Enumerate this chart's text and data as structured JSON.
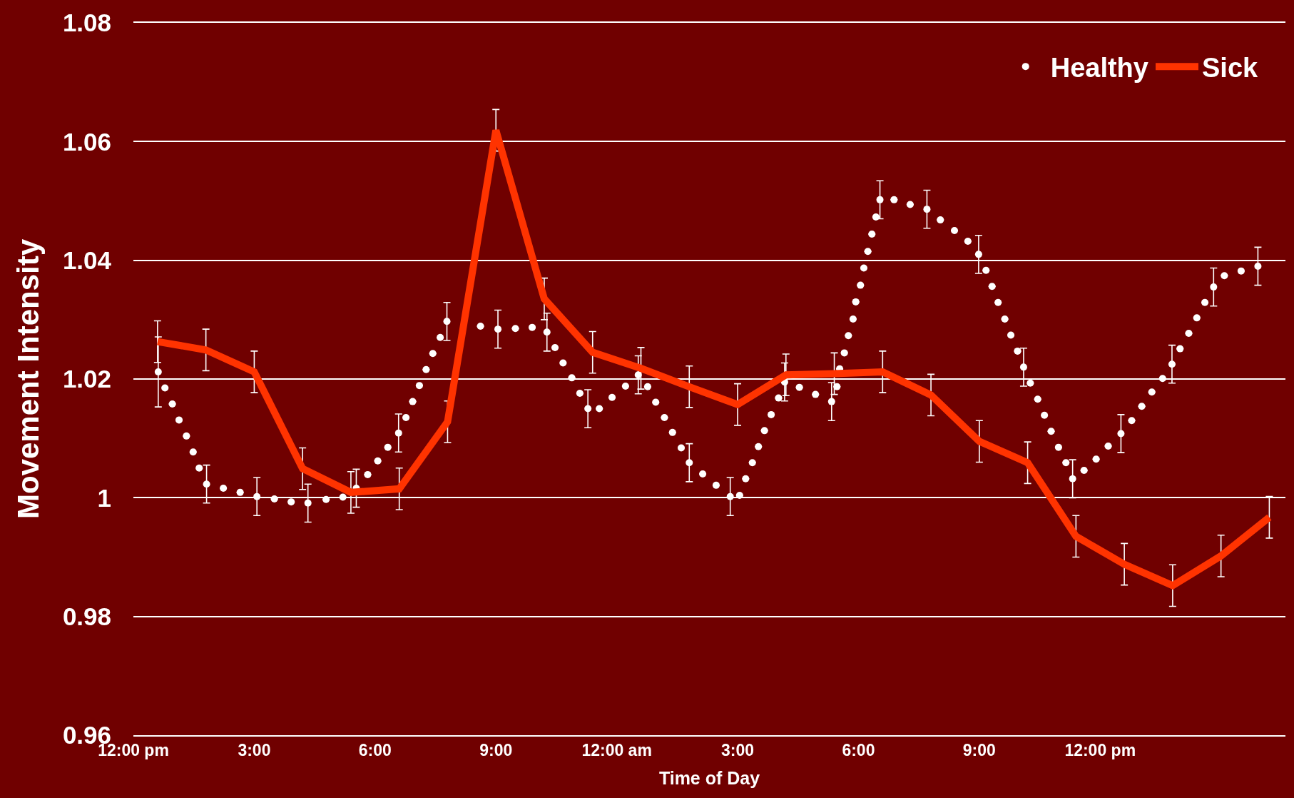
{
  "chart_data": {
    "type": "line",
    "xlabel": "Time of Day",
    "ylabel": "Movement Intensity",
    "xlim": [
      "--01-01T12:00",
      "--01-02T16:36"
    ],
    "xticks": [
      {
        "value": "--01-01T12:00",
        "label": "12:00 pm"
      },
      {
        "value": "--01-01T15:00",
        "label": "3:00"
      },
      {
        "value": "--01-01T18:00",
        "label": "6:00"
      },
      {
        "value": "--01-01T21:00",
        "label": "9:00"
      },
      {
        "value": "--01-02T00:00",
        "label": "12:00 am"
      },
      {
        "value": "--01-02T03:00",
        "label": "3:00"
      },
      {
        "value": "--01-02T06:00",
        "label": "6:00"
      },
      {
        "value": "--01-02T09:00",
        "label": "9:00"
      },
      {
        "value": "--01-02T12:00",
        "label": "12:00 pm"
      }
    ],
    "ylim": [
      0.96,
      1.08
    ],
    "yticks": [
      0.96,
      0.98,
      1,
      1.02,
      1.04,
      1.06,
      1.08
    ],
    "grid": "y",
    "legend": "top right",
    "series": [
      {
        "name": "Healthy",
        "type": "scatter",
        "marker": "circle",
        "color": "#ffffff",
        "x": [
          "--01-01T12:37",
          "--01-01T12:47",
          "--01-01T12:58",
          "--01-01T13:08",
          "--01-01T13:19",
          "--01-01T13:29",
          "--01-01T13:38",
          "--01-01T13:49",
          "--01-01T14:14",
          "--01-01T14:39",
          "--01-01T15:04",
          "--01-01T15:30",
          "--01-01T15:55",
          "--01-01T16:20",
          "--01-01T16:47",
          "--01-01T17:12",
          "--01-01T17:32",
          "--01-01T17:49",
          "--01-01T18:04",
          "--01-01T18:19",
          "--01-01T18:35",
          "--01-01T18:46",
          "--01-01T18:56",
          "--01-01T19:06",
          "--01-01T19:16",
          "--01-01T19:26",
          "--01-01T19:37",
          "--01-01T19:47",
          "--01-01T20:37",
          "--01-01T21:03",
          "--01-01T21:29",
          "--01-01T21:54",
          "--01-01T22:16",
          "--01-01T22:28",
          "--01-01T22:40",
          "--01-01T22:53",
          "--01-01T23:05",
          "--01-01T23:17",
          "--01-01T23:34",
          "--01-01T23:53",
          "--01-02T00:13",
          "--01-02T00:32",
          "--01-02T00:46",
          "--01-02T00:58",
          "--01-02T01:11",
          "--01-02T01:23",
          "--01-02T01:36",
          "--01-02T01:48",
          "--01-02T02:08",
          "--01-02T02:28",
          "--01-02T02:49",
          "--01-02T03:03",
          "--01-02T03:12",
          "--01-02T03:22",
          "--01-02T03:31",
          "--01-02T03:40",
          "--01-02T03:50",
          "--01-02T04:01",
          "--01-02T04:10",
          "--01-02T04:32",
          "--01-02T04:56",
          "--01-02T05:20",
          "--01-02T05:28",
          "--01-02T05:32",
          "--01-02T05:39",
          "--01-02T05:45",
          "--01-02T05:52",
          "--01-02T05:56",
          "--01-02T06:03",
          "--01-02T06:08",
          "--01-02T06:14",
          "--01-02T06:20",
          "--01-02T06:26",
          "--01-02T06:32",
          "--01-02T06:53",
          "--01-02T07:17",
          "--01-02T07:42",
          "--01-02T08:02",
          "--01-02T08:23",
          "--01-02T08:43",
          "--01-02T08:59",
          "--01-02T09:10",
          "--01-02T09:19",
          "--01-02T09:28",
          "--01-02T09:38",
          "--01-02T09:47",
          "--01-02T09:57",
          "--01-02T10:06",
          "--01-02T10:16",
          "--01-02T10:27",
          "--01-02T10:37",
          "--01-02T10:47",
          "--01-02T10:58",
          "--01-02T11:09",
          "--01-02T11:19",
          "--01-02T11:36",
          "--01-02T11:54",
          "--01-02T12:12",
          "--01-02T12:31",
          "--01-02T12:47",
          "--01-02T13:02",
          "--01-02T13:17",
          "--01-02T13:33",
          "--01-02T13:47",
          "--01-02T13:59",
          "--01-02T14:12",
          "--01-02T14:24",
          "--01-02T14:36",
          "--01-02T14:49",
          "--01-02T15:05",
          "--01-02T15:30",
          "--01-02T15:55"
        ],
        "values": [
          1.0212,
          1.0185,
          1.0158,
          1.0131,
          1.0104,
          1.0077,
          1.005,
          1.0023,
          1.0016,
          1.0009,
          1.0002,
          0.9998,
          0.9993,
          0.9991,
          0.9997,
          1.0001,
          1.0016,
          1.0039,
          1.0062,
          1.0085,
          1.0109,
          1.0135,
          1.0162,
          1.0189,
          1.0216,
          1.0243,
          1.027,
          1.0297,
          1.0289,
          1.0284,
          1.0285,
          1.0287,
          1.0279,
          1.0253,
          1.0227,
          1.0202,
          1.0176,
          1.015,
          1.015,
          1.0169,
          1.0188,
          1.0207,
          1.0187,
          1.0161,
          1.0135,
          1.011,
          1.0084,
          1.0059,
          1.004,
          1.0021,
          1.0002,
          1.0004,
          1.0032,
          1.0059,
          1.0086,
          1.0113,
          1.014,
          1.0168,
          1.0195,
          1.0186,
          1.0174,
          1.0162,
          1.0187,
          1.0217,
          1.0244,
          1.0273,
          1.0301,
          1.033,
          1.0358,
          1.0387,
          1.0415,
          1.0444,
          1.0473,
          1.0502,
          1.0502,
          1.0494,
          1.0486,
          1.0468,
          1.045,
          1.0432,
          1.041,
          1.0383,
          1.0356,
          1.0329,
          1.0301,
          1.0274,
          1.0247,
          1.022,
          1.0193,
          1.0166,
          1.0139,
          1.0112,
          1.0085,
          1.0059,
          1.0032,
          1.0046,
          1.0065,
          1.0087,
          1.0108,
          1.013,
          1.0154,
          1.0178,
          1.0201,
          1.0225,
          1.0251,
          1.0277,
          1.0303,
          1.0329,
          1.0355,
          1.0374,
          1.0382,
          1.039
        ],
        "errors": [
          0.0059,
          null,
          null,
          null,
          null,
          null,
          null,
          0.0032,
          null,
          null,
          0.0032,
          null,
          null,
          0.0032,
          null,
          null,
          0.0032,
          null,
          null,
          null,
          0.0032,
          null,
          null,
          null,
          null,
          null,
          null,
          0.0032,
          null,
          0.0032,
          null,
          null,
          0.0032,
          null,
          null,
          null,
          null,
          0.0032,
          null,
          null,
          null,
          0.0032,
          null,
          null,
          null,
          null,
          null,
          0.0032,
          null,
          null,
          0.0032,
          null,
          null,
          null,
          null,
          null,
          null,
          null,
          0.0032,
          null,
          null,
          0.0032,
          null,
          null,
          null,
          null,
          null,
          null,
          null,
          null,
          null,
          null,
          null,
          0.0032,
          null,
          null,
          0.0032,
          null,
          null,
          null,
          0.0032,
          null,
          null,
          null,
          null,
          null,
          null,
          0.0032,
          null,
          null,
          null,
          null,
          null,
          null,
          0.0032,
          null,
          null,
          null,
          0.0032,
          null,
          null,
          null,
          null,
          0.0032,
          null,
          null,
          null,
          null,
          0.0032,
          null,
          null,
          0.0032
        ]
      },
      {
        "name": "Sick",
        "marker": "none",
        "line_style": "solid",
        "color": "#ff3300",
        "x": [
          "--01-01T12:36",
          "--01-01T13:48",
          "--01-01T15:00",
          "--01-01T16:12",
          "--01-01T17:24",
          "--01-01T18:36",
          "--01-01T19:48",
          "--01-01T21:00",
          "--01-01T22:12",
          "--01-01T23:24",
          "--01-02T00:36",
          "--01-02T01:48",
          "--01-02T03:00",
          "--01-02T04:12",
          "--01-02T05:24",
          "--01-02T06:36",
          "--01-02T07:48",
          "--01-02T09:00",
          "--01-02T10:12",
          "--01-02T11:24",
          "--01-02T12:36",
          "--01-02T13:48",
          "--01-02T15:00",
          "--01-02T16:12"
        ],
        "values": [
          1.0263,
          1.0249,
          1.0212,
          1.0049,
          1.0009,
          1.0015,
          1.0128,
          1.0619,
          1.0335,
          1.0245,
          1.0218,
          1.0187,
          1.0157,
          1.0207,
          1.0209,
          1.0212,
          1.0173,
          1.0095,
          1.0059,
          0.9935,
          0.9888,
          0.9852,
          0.9902,
          0.9967
        ],
        "errors": [
          0.0035,
          0.0035,
          0.0035,
          0.0035,
          0.0035,
          0.0035,
          0.0035,
          0.0035,
          0.0035,
          0.0035,
          0.0035,
          0.0035,
          0.0035,
          0.0035,
          0.0035,
          0.0035,
          0.0035,
          0.0035,
          0.0035,
          0.0035,
          0.0035,
          0.0035,
          0.0035,
          0.0035
        ]
      }
    ]
  }
}
